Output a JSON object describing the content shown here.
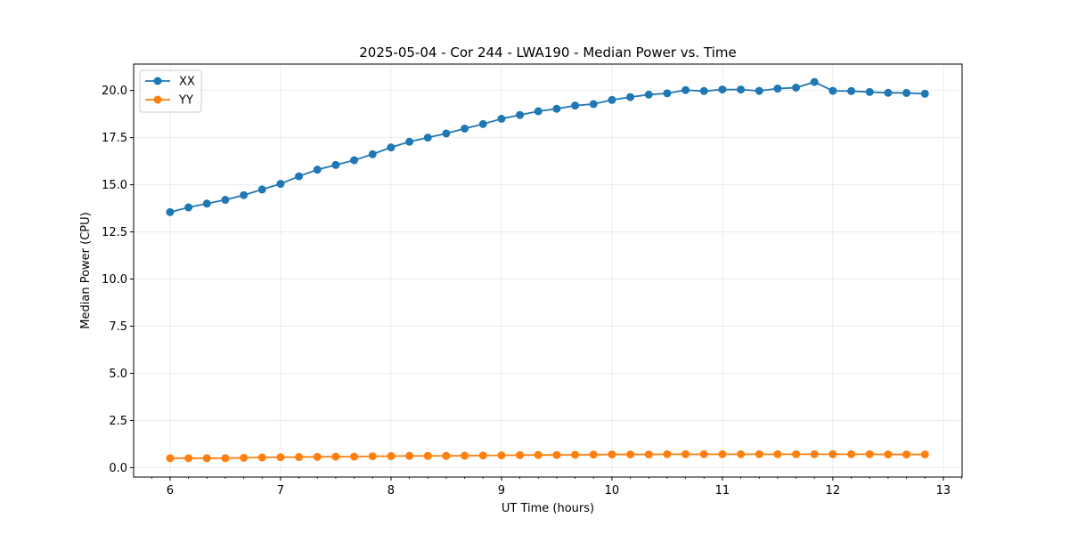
{
  "chart_data": {
    "type": "line",
    "title": "2025-05-04 - Cor 244 - LWA190 - Median Power vs. Time",
    "xlabel": "UT Time (hours)",
    "ylabel": "Median Power (CPU)",
    "xlim": [
      5.67,
      13.17
    ],
    "ylim": [
      -0.5,
      21.4
    ],
    "xticks": [
      6,
      7,
      8,
      9,
      10,
      11,
      12,
      13
    ],
    "xtick_labels": [
      "6",
      "7",
      "8",
      "9",
      "10",
      "11",
      "12",
      "13"
    ],
    "yticks": [
      0,
      2.5,
      5,
      7.5,
      10,
      12.5,
      15,
      17.5,
      20
    ],
    "ytick_labels": [
      "0.0",
      "2.5",
      "5.0",
      "7.5",
      "10.0",
      "12.5",
      "15.0",
      "17.5",
      "20.0"
    ],
    "grid": true,
    "legend_location": "top-left",
    "x": [
      6.0,
      6.1667,
      6.3333,
      6.5,
      6.6667,
      6.8333,
      7.0,
      7.1667,
      7.3333,
      7.5,
      7.6667,
      7.8333,
      8.0,
      8.1667,
      8.3333,
      8.5,
      8.6667,
      8.8333,
      9.0,
      9.1667,
      9.3333,
      9.5,
      9.6667,
      9.8333,
      10.0,
      10.1667,
      10.3333,
      10.5,
      10.6667,
      10.8333,
      11.0,
      11.1667,
      11.3333,
      11.5,
      11.6667,
      11.8333,
      12.0,
      12.1667,
      12.3333,
      12.5,
      12.6667,
      12.8333
    ],
    "series": [
      {
        "name": "XX",
        "color": "#1f77b4",
        "values": [
          13.55,
          13.8,
          14.0,
          14.2,
          14.45,
          14.75,
          15.05,
          15.45,
          15.8,
          16.05,
          16.3,
          16.62,
          16.98,
          17.28,
          17.5,
          17.72,
          17.98,
          18.22,
          18.5,
          18.7,
          18.9,
          19.03,
          19.2,
          19.28,
          19.5,
          19.65,
          19.78,
          19.85,
          20.02,
          19.97,
          20.05,
          20.05,
          19.98,
          20.1,
          20.15,
          20.45,
          19.98,
          19.97,
          19.92,
          19.88,
          19.87,
          19.83
        ]
      },
      {
        "name": "YY",
        "color": "#ff7f0e",
        "values": [
          0.5,
          0.5,
          0.5,
          0.5,
          0.52,
          0.54,
          0.55,
          0.56,
          0.57,
          0.58,
          0.58,
          0.6,
          0.61,
          0.62,
          0.62,
          0.62,
          0.63,
          0.64,
          0.65,
          0.66,
          0.67,
          0.67,
          0.68,
          0.69,
          0.7,
          0.7,
          0.7,
          0.71,
          0.71,
          0.71,
          0.71,
          0.71,
          0.71,
          0.71,
          0.71,
          0.71,
          0.71,
          0.71,
          0.71,
          0.7,
          0.7,
          0.7
        ]
      }
    ]
  }
}
